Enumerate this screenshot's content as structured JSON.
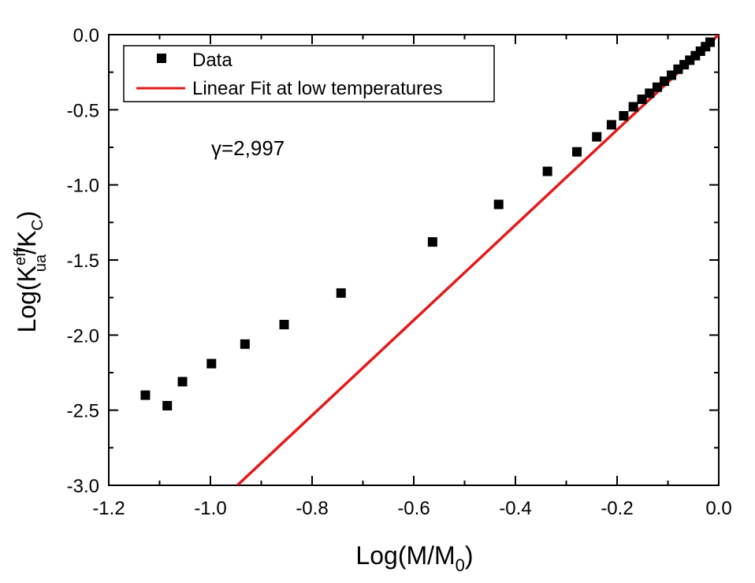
{
  "chart_data": {
    "type": "scatter",
    "title": "",
    "xlabel": "Log(M/M0)",
    "ylabel": "Log(Keff ua/KC)",
    "xlabel_parts": {
      "main": "Log(M/M",
      "sub": "0",
      "end": ")"
    },
    "ylabel_parts": {
      "main": "Log(K",
      "sup": "eff",
      "sub": "ua",
      "mid": "/K",
      "sub2": "C",
      "end": ")"
    },
    "xlim": [
      -1.2,
      0.0
    ],
    "ylim": [
      -3.0,
      0.0
    ],
    "x_ticks": [
      -1.2,
      -1.0,
      -0.8,
      -0.6,
      -0.4,
      -0.2,
      0.0
    ],
    "x_tick_labels": [
      "-1.2",
      "-1.0",
      "-0.8",
      "-0.6",
      "-0.4",
      "-0.2",
      "0.0"
    ],
    "y_ticks": [
      0.0,
      -0.5,
      -1.0,
      -1.5,
      -2.0,
      -2.5,
      -3.0
    ],
    "y_tick_labels": [
      "0.0",
      "-0.5",
      "-1.0",
      "-1.5",
      "-2.0",
      "-2.5",
      "-3.0"
    ],
    "x_minor_step": 0.1,
    "y_minor_step": 0.25,
    "grid": false,
    "legend_position": "top-left",
    "annotation": "γ=2,997",
    "series": [
      {
        "name": "Data",
        "kind": "scatter",
        "marker": "square",
        "color": "#000000",
        "x": [
          -1.128,
          -1.085,
          -1.055,
          -0.998,
          -0.932,
          -0.855,
          -0.743,
          -0.563,
          -0.433,
          -0.337,
          -0.279,
          -0.24,
          -0.211,
          -0.187,
          -0.168,
          -0.151,
          -0.136,
          -0.121,
          -0.107,
          -0.093,
          -0.08,
          -0.068,
          -0.057,
          -0.046,
          -0.036,
          -0.026,
          -0.017
        ],
        "y": [
          -2.4,
          -2.47,
          -2.31,
          -2.19,
          -2.06,
          -1.93,
          -1.72,
          -1.38,
          -1.13,
          -0.91,
          -0.78,
          -0.68,
          -0.6,
          -0.54,
          -0.48,
          -0.43,
          -0.39,
          -0.35,
          -0.31,
          -0.27,
          -0.23,
          -0.2,
          -0.17,
          -0.14,
          -0.11,
          -0.08,
          -0.05
        ]
      },
      {
        "name": "Linear Fit at low temperatures",
        "kind": "line",
        "color": "#e41a1a",
        "x": [
          -0.947,
          0.0
        ],
        "y": [
          -3.0,
          0.0
        ]
      }
    ]
  }
}
